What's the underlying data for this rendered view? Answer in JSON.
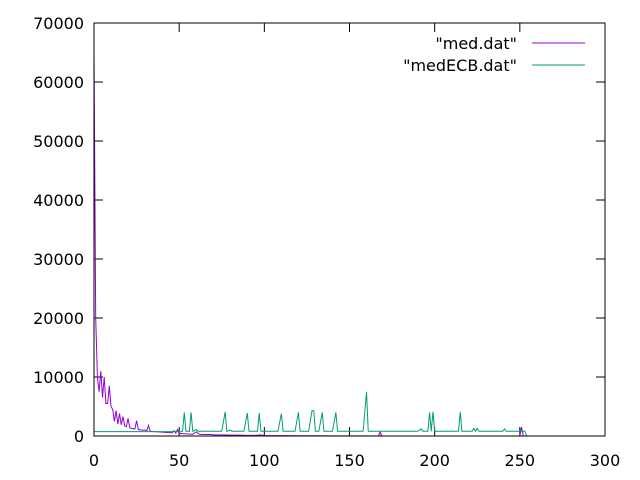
{
  "chart_data": {
    "type": "line",
    "title": "",
    "xlabel": "",
    "ylabel": "",
    "xlim": [
      0,
      300
    ],
    "ylim": [
      0,
      70000
    ],
    "x_ticks": [
      0,
      50,
      100,
      150,
      200,
      250,
      300
    ],
    "y_ticks": [
      0,
      10000,
      20000,
      30000,
      40000,
      50000,
      60000,
      70000
    ],
    "x_tick_labels": [
      "0",
      "50",
      "100",
      "150",
      "200",
      "250",
      "300"
    ],
    "y_tick_labels": [
      "0",
      "10000",
      "20000",
      "30000",
      "40000",
      "50000",
      "60000",
      "70000"
    ],
    "grid": false,
    "legend_position": "top-right",
    "series": [
      {
        "name": "\"med.dat\"",
        "color": "#9400d3",
        "points": [
          [
            0,
            65000
          ],
          [
            1,
            20000
          ],
          [
            2,
            10000
          ],
          [
            3,
            7500
          ],
          [
            4,
            11000
          ],
          [
            5,
            6500
          ],
          [
            6,
            10000
          ],
          [
            7,
            5500
          ],
          [
            8,
            5500
          ],
          [
            9,
            8500
          ],
          [
            10,
            5000
          ],
          [
            11,
            4500
          ],
          [
            12,
            2500
          ],
          [
            13,
            4300
          ],
          [
            14,
            2000
          ],
          [
            15,
            3800
          ],
          [
            16,
            1900
          ],
          [
            17,
            3300
          ],
          [
            18,
            1700
          ],
          [
            19,
            1600
          ],
          [
            20,
            3000
          ],
          [
            21,
            1400
          ],
          [
            22,
            1300
          ],
          [
            24,
            1200
          ],
          [
            25,
            2600
          ],
          [
            26,
            1100
          ],
          [
            28,
            1000
          ],
          [
            30,
            1000
          ],
          [
            31,
            900
          ],
          [
            32,
            1800
          ],
          [
            33,
            800
          ],
          [
            35,
            750
          ],
          [
            38,
            700
          ],
          [
            40,
            650
          ],
          [
            43,
            600
          ],
          [
            46,
            550
          ],
          [
            47,
            900
          ],
          [
            48,
            500
          ],
          [
            49,
            1100
          ],
          [
            50,
            450
          ],
          [
            52,
            400
          ],
          [
            55,
            350
          ],
          [
            58,
            300
          ],
          [
            60,
            700
          ],
          [
            62,
            300
          ],
          [
            65,
            250
          ],
          [
            68,
            250
          ],
          [
            70,
            200
          ],
          [
            75,
            200
          ],
          [
            80,
            150
          ],
          [
            85,
            150
          ],
          [
            90,
            100
          ],
          [
            95,
            100
          ],
          [
            98,
            200
          ],
          [
            100,
            80
          ],
          [
            110,
            60
          ],
          [
            120,
            50
          ],
          [
            130,
            40
          ],
          [
            140,
            30
          ],
          [
            150,
            20
          ],
          [
            160,
            15
          ],
          [
            167,
            10
          ],
          [
            168,
            700
          ],
          [
            169,
            10
          ],
          [
            180,
            5
          ],
          [
            200,
            0
          ],
          [
            220,
            0
          ],
          [
            240,
            0
          ],
          [
            250,
            0
          ],
          [
            251,
            1500
          ],
          [
            252,
            0
          ],
          [
            255,
            0
          ],
          [
            300,
            0
          ]
        ]
      },
      {
        "name": "\"medECB.dat\"",
        "color": "#009e73",
        "points": [
          [
            0,
            750
          ],
          [
            50,
            750
          ],
          [
            51,
            700
          ],
          [
            52,
            800
          ],
          [
            53,
            4000
          ],
          [
            54,
            800
          ],
          [
            56,
            800
          ],
          [
            57,
            4000
          ],
          [
            58,
            800
          ],
          [
            60,
            1100
          ],
          [
            61,
            800
          ],
          [
            75,
            800
          ],
          [
            77,
            4100
          ],
          [
            78,
            800
          ],
          [
            80,
            1000
          ],
          [
            81,
            800
          ],
          [
            88,
            800
          ],
          [
            90,
            3900
          ],
          [
            91,
            800
          ],
          [
            96,
            800
          ],
          [
            97,
            3900
          ],
          [
            98,
            800
          ],
          [
            108,
            800
          ],
          [
            110,
            3800
          ],
          [
            111,
            800
          ],
          [
            118,
            800
          ],
          [
            120,
            4000
          ],
          [
            121,
            800
          ],
          [
            126,
            800
          ],
          [
            128,
            4300
          ],
          [
            129,
            4300
          ],
          [
            130,
            800
          ],
          [
            132,
            800
          ],
          [
            134,
            4000
          ],
          [
            135,
            800
          ],
          [
            140,
            800
          ],
          [
            142,
            4000
          ],
          [
            143,
            800
          ],
          [
            158,
            800
          ],
          [
            160,
            7500
          ],
          [
            161,
            800
          ],
          [
            190,
            800
          ],
          [
            192,
            1200
          ],
          [
            193,
            800
          ],
          [
            196,
            800
          ],
          [
            197,
            4000
          ],
          [
            198,
            800
          ],
          [
            199,
            4100
          ],
          [
            200,
            800
          ],
          [
            214,
            800
          ],
          [
            215,
            4100
          ],
          [
            216,
            800
          ],
          [
            222,
            800
          ],
          [
            223,
            1300
          ],
          [
            224,
            800
          ],
          [
            225,
            1300
          ],
          [
            226,
            800
          ],
          [
            240,
            800
          ],
          [
            241,
            1200
          ],
          [
            242,
            800
          ],
          [
            252,
            800
          ],
          [
            253,
            800
          ],
          [
            254,
            0
          ]
        ]
      }
    ]
  }
}
